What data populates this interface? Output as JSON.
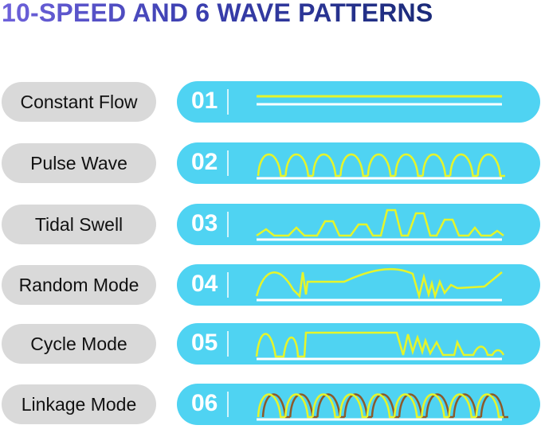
{
  "title": "10-SPEED AND 6 WAVE PATTERNS",
  "colors": {
    "pill_bg": "#4fd3f2",
    "label_bg": "#d9d9d9",
    "wave": "#e6f52a",
    "wave_secondary": "#8b5a2b",
    "baseline": "#ffffff"
  },
  "modes": [
    {
      "label": "Constant Flow",
      "number": "01"
    },
    {
      "label": "Pulse Wave",
      "number": "02"
    },
    {
      "label": "Tidal Swell",
      "number": "03"
    },
    {
      "label": "Random Mode",
      "number": "04"
    },
    {
      "label": "Cycle Mode",
      "number": "05"
    },
    {
      "label": "Linkage Mode",
      "number": "06"
    }
  ]
}
